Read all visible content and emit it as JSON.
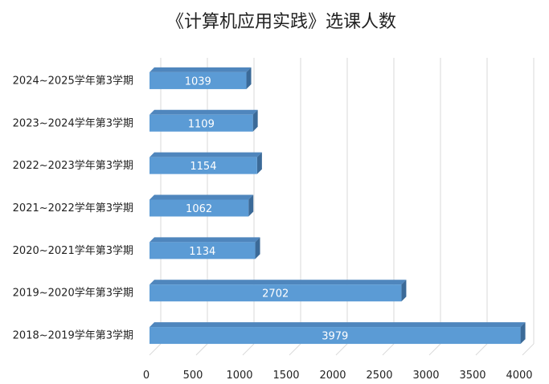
{
  "chart_data": {
    "type": "bar",
    "orientation": "horizontal",
    "title": "《计算机应用实践》选课人数",
    "xlabel": "",
    "ylabel": "",
    "categories": [
      "2024~2025学年第3学期",
      "2023~2024学年第3学期",
      "2022~2023学年第3学期",
      "2021~2022学年第3学期",
      "2020~2021学年第3学期",
      "2019~2020学年第3学期",
      "2018~2019学年第3学期"
    ],
    "values": [
      1039,
      1109,
      1154,
      1062,
      1134,
      2702,
      3979
    ],
    "xlim": [
      0,
      4000
    ],
    "xticks": [
      0,
      500,
      1000,
      1500,
      2000,
      2500,
      3000,
      3500,
      4000
    ],
    "xtick_labels": [
      "0",
      "500",
      "1000",
      "1500",
      "2000",
      "2500",
      "3000",
      "3500",
      "4000"
    ],
    "grid": "vertical",
    "legend": "none",
    "style": "3d",
    "colors": {
      "bar_front": "#5B9BD5",
      "bar_top": "#4F86BD",
      "bar_side": "#3B6A98",
      "grid": "#D9D9D9"
    }
  }
}
